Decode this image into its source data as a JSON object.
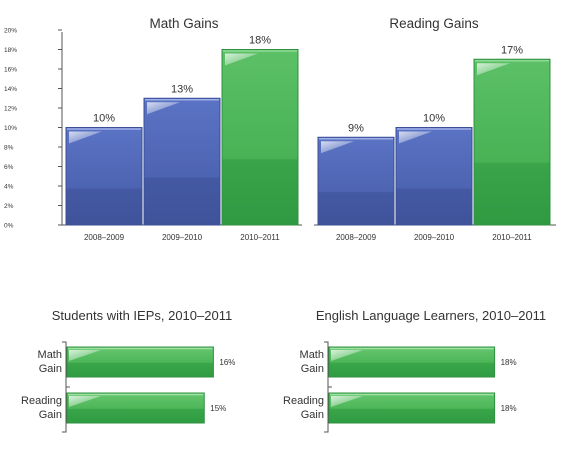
{
  "colors": {
    "blue": "#4c63b0",
    "green": "#3fae4e",
    "axis": "#555555",
    "text": "#333333"
  },
  "chart_data": [
    {
      "type": "bar",
      "title": "Math Gains",
      "categories": [
        "2008–2009",
        "2009–2010",
        "2010–2011"
      ],
      "values": [
        10,
        13,
        18
      ],
      "data_labels": [
        "10%",
        "13%",
        "18%"
      ],
      "bar_colors": [
        "blue",
        "blue",
        "green"
      ],
      "ylim": [
        0,
        20
      ],
      "yticks": [
        "0%",
        "2%",
        "4%",
        "6%",
        "8%",
        "10%",
        "12%",
        "14%",
        "16%",
        "18%",
        "20%"
      ]
    },
    {
      "type": "bar",
      "title": "Reading Gains",
      "categories": [
        "2008–2009",
        "2009–2010",
        "2010–2011"
      ],
      "values": [
        9,
        10,
        17
      ],
      "data_labels": [
        "9%",
        "10%",
        "17%"
      ],
      "bar_colors": [
        "blue",
        "blue",
        "green"
      ],
      "ylim": [
        0,
        20
      ]
    },
    {
      "type": "bar",
      "orientation": "horizontal",
      "title": "Students with IEPs, 2010–2011",
      "categories": [
        [
          "Math",
          "Gain"
        ],
        [
          "Reading",
          "Gain"
        ]
      ],
      "values": [
        16,
        15
      ],
      "data_labels": [
        "16%",
        "15%"
      ]
    },
    {
      "type": "bar",
      "orientation": "horizontal",
      "title": "English Language Learners, 2010–2011",
      "categories": [
        [
          "Math",
          "Gain"
        ],
        [
          "Reading",
          "Gain"
        ]
      ],
      "values": [
        18,
        18
      ],
      "data_labels": [
        "18%",
        "18%"
      ]
    }
  ]
}
